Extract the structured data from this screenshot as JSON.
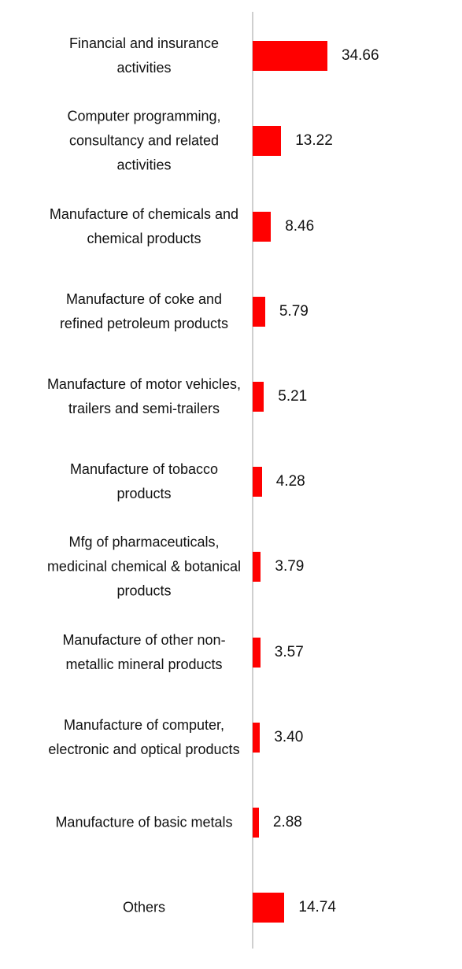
{
  "chart_data": {
    "type": "bar",
    "orientation": "horizontal",
    "color": "#ff0000",
    "categories": [
      "Financial and insurance activities",
      "Computer programming, consultancy and related activities",
      "Manufacture of chemicals and chemical products",
      "Manufacture of coke and refined petroleum products",
      "Manufacture of motor vehicles, trailers and semi-trailers",
      "Manufacture of tobacco products",
      "Mfg of pharmaceuticals, medicinal chemical & botanical products",
      "Manufacture of other non-metallic mineral products",
      "Manufacture of computer, electronic and optical products",
      "Manufacture of basic metals",
      "Others"
    ],
    "values": [
      34.66,
      13.22,
      8.46,
      5.79,
      5.21,
      4.28,
      3.79,
      3.57,
      3.4,
      2.88,
      14.74
    ],
    "value_labels": [
      "34.66",
      "13.22",
      "8.46",
      "5.79",
      "5.21",
      "4.28",
      "3.79",
      "3.57",
      "3.40",
      "2.88",
      "14.74"
    ]
  }
}
